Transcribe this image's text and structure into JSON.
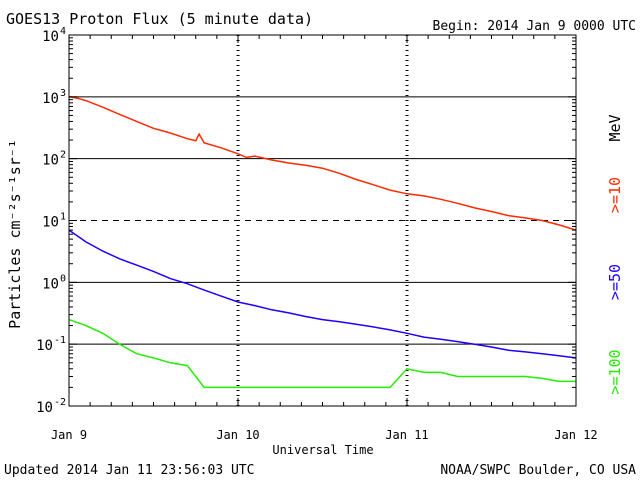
{
  "chart_data": {
    "type": "line",
    "title": "GOES13 Proton Flux (5 minute data)",
    "begin": "Begin: 2014 Jan 9 0000 UTC",
    "xlabel": "Universal Time",
    "ylabel": "Particles cm⁻²s⁻¹sr⁻¹",
    "y_scale": "log",
    "ylim": [
      0.01,
      10000
    ],
    "xlim": [
      0,
      3
    ],
    "grid": true,
    "x_ticks": [
      {
        "value": 0,
        "label": "Jan 9"
      },
      {
        "value": 1,
        "label": "Jan 10"
      },
      {
        "value": 2,
        "label": "Jan 11"
      },
      {
        "value": 3,
        "label": "Jan 12"
      }
    ],
    "y_ticks": [
      {
        "value": 0.01,
        "base": "10",
        "exp": "-2"
      },
      {
        "value": 0.1,
        "base": "10",
        "exp": "-1"
      },
      {
        "value": 1,
        "base": "10",
        "exp": "0"
      },
      {
        "value": 10,
        "base": "10",
        "exp": "1"
      },
      {
        "value": 100,
        "base": "10",
        "exp": "2"
      },
      {
        "value": 1000,
        "base": "10",
        "exp": "3"
      },
      {
        "value": 10000,
        "base": "10",
        "exp": "4"
      }
    ],
    "threshold_line": {
      "value": 10,
      "style": "dashed"
    },
    "series": [
      {
        "name": ">=10",
        "unit": "MeV",
        "color": "#ff2a00",
        "x": [
          0,
          0.05,
          0.1,
          0.2,
          0.3,
          0.4,
          0.5,
          0.6,
          0.7,
          0.75,
          0.77,
          0.8,
          0.9,
          1.0,
          1.05,
          1.1,
          1.2,
          1.3,
          1.4,
          1.5,
          1.6,
          1.7,
          1.8,
          1.9,
          2.0,
          2.1,
          2.2,
          2.3,
          2.4,
          2.5,
          2.6,
          2.7,
          2.8,
          2.9,
          3.0
        ],
        "y": [
          1000,
          950,
          870,
          680,
          520,
          400,
          310,
          260,
          210,
          195,
          250,
          180,
          150,
          120,
          105,
          110,
          95,
          85,
          78,
          70,
          58,
          46,
          38,
          31,
          27,
          25,
          22,
          19,
          16,
          14,
          12,
          11,
          10,
          8.5,
          7
        ]
      },
      {
        "name": ">=50",
        "unit": "",
        "color": "#1e00ff",
        "x": [
          0,
          0.1,
          0.2,
          0.3,
          0.4,
          0.5,
          0.6,
          0.7,
          0.8,
          0.9,
          1.0,
          1.1,
          1.2,
          1.3,
          1.4,
          1.5,
          1.6,
          1.7,
          1.8,
          1.9,
          2.0,
          2.1,
          2.2,
          2.3,
          2.4,
          2.5,
          2.6,
          2.7,
          2.8,
          2.9,
          3.0
        ],
        "y": [
          7,
          4.5,
          3.2,
          2.4,
          1.9,
          1.5,
          1.15,
          0.95,
          0.75,
          0.6,
          0.48,
          0.42,
          0.36,
          0.32,
          0.28,
          0.25,
          0.23,
          0.21,
          0.19,
          0.17,
          0.15,
          0.13,
          0.12,
          0.11,
          0.1,
          0.09,
          0.08,
          0.075,
          0.07,
          0.065,
          0.06
        ]
      },
      {
        "name": ">=100",
        "unit": "",
        "color": "#22ee00",
        "x": [
          0,
          0.1,
          0.2,
          0.3,
          0.4,
          0.5,
          0.6,
          0.7,
          0.8,
          0.9,
          1.0,
          1.5,
          1.9,
          2.0,
          2.1,
          2.2,
          2.3,
          2.4,
          2.5,
          2.6,
          2.7,
          2.8,
          2.9,
          3.0
        ],
        "y": [
          0.25,
          0.2,
          0.15,
          0.1,
          0.07,
          0.06,
          0.05,
          0.045,
          0.02,
          0.02,
          0.02,
          0.02,
          0.02,
          0.04,
          0.035,
          0.035,
          0.03,
          0.03,
          0.03,
          0.03,
          0.03,
          0.028,
          0.025,
          0.025
        ]
      }
    ]
  },
  "footer": {
    "updated": "Updated 2014 Jan 11 23:56:03 UTC",
    "source": "NOAA/SWPC Boulder, CO USA"
  }
}
